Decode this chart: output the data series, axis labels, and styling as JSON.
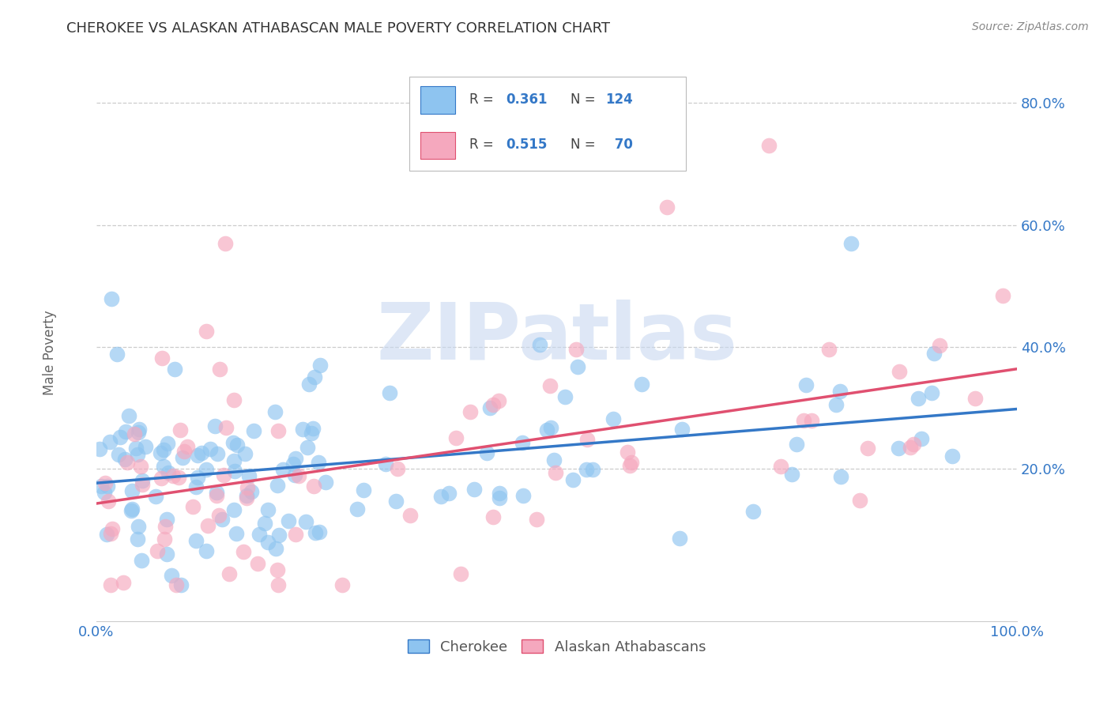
{
  "title": "CHEROKEE VS ALASKAN ATHABASCAN MALE POVERTY CORRELATION CHART",
  "source": "Source: ZipAtlas.com",
  "ylabel": "Male Poverty",
  "ytick_labels": [
    "20.0%",
    "40.0%",
    "60.0%",
    "80.0%"
  ],
  "ytick_values": [
    0.2,
    0.4,
    0.6,
    0.8
  ],
  "xlim": [
    0.0,
    1.0
  ],
  "ylim": [
    -0.05,
    0.88
  ],
  "cherokee_color": "#8EC4F0",
  "cherokee_line_color": "#3478C7",
  "athabascan_color": "#F5A8BE",
  "athabascan_line_color": "#E05070",
  "cherokee_R": 0.361,
  "cherokee_N": 124,
  "athabascan_R": 0.515,
  "athabascan_N": 70,
  "legend_text_color": "#3478C7",
  "watermark_color": "#C8D8F0",
  "background_color": "#ffffff",
  "grid_color": "#cccccc",
  "title_color": "#333333",
  "source_color": "#888888"
}
